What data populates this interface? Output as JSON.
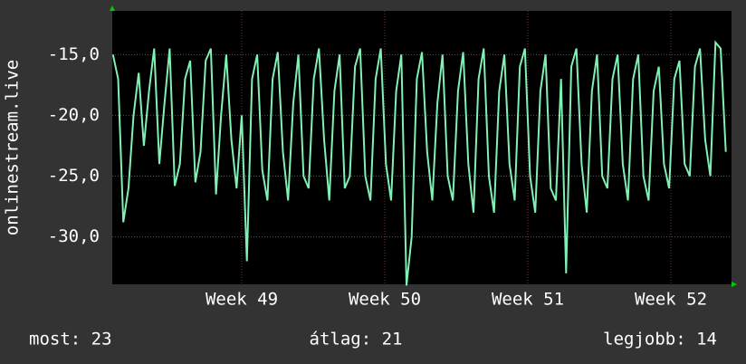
{
  "chart_data": {
    "type": "line",
    "y_label": "onlinestream.live",
    "x": [
      48.1,
      48.136,
      48.172,
      48.208,
      48.244,
      48.28,
      48.316,
      48.352,
      48.388,
      48.424,
      48.46,
      48.496,
      48.532,
      48.568,
      48.604,
      48.64,
      48.676,
      48.712,
      48.748,
      48.784,
      48.82,
      48.856,
      48.892,
      48.928,
      48.964,
      49.0,
      49.036,
      49.072,
      49.108,
      49.144,
      49.18,
      49.216,
      49.252,
      49.288,
      49.324,
      49.36,
      49.396,
      49.432,
      49.468,
      49.504,
      49.54,
      49.576,
      49.612,
      49.648,
      49.684,
      49.72,
      49.756,
      49.792,
      49.828,
      49.864,
      49.9,
      49.936,
      49.972,
      50.008,
      50.044,
      50.08,
      50.116,
      50.152,
      50.188,
      50.224,
      50.26,
      50.296,
      50.332,
      50.368,
      50.404,
      50.44,
      50.476,
      50.512,
      50.548,
      50.584,
      50.62,
      50.656,
      50.692,
      50.728,
      50.764,
      50.8,
      50.836,
      50.872,
      50.908,
      50.944,
      50.98,
      51.016,
      51.052,
      51.088,
      51.124,
      51.16,
      51.196,
      51.232,
      51.268,
      51.304,
      51.34,
      51.376,
      51.412,
      51.448,
      51.484,
      51.52,
      51.556,
      51.592,
      51.628,
      51.664,
      51.7,
      51.736,
      51.772,
      51.808,
      51.844,
      51.88,
      51.916,
      51.952,
      51.988,
      52.024,
      52.06,
      52.096,
      52.132,
      52.168,
      52.204,
      52.24,
      52.276,
      52.312,
      52.348,
      52.384
    ],
    "series": [
      {
        "color": "#80f0b4",
        "values": [
          -15,
          -17,
          -28.8,
          -26,
          -20,
          -16.5,
          -22.5,
          -18,
          -14.5,
          -24,
          -19,
          -14.5,
          -25.8,
          -24,
          -17,
          -15.5,
          -25.5,
          -23,
          -15.5,
          -14.5,
          -26.5,
          -20,
          -15,
          -22,
          -26,
          -20,
          -32,
          -17,
          -15,
          -24.5,
          -27,
          -17,
          -14.8,
          -23,
          -27,
          -19,
          -15,
          -25,
          -26,
          -17,
          -14.5,
          -22,
          -27,
          -18,
          -15,
          -26,
          -25,
          -16,
          -14.5,
          -25,
          -27,
          -17,
          -14.5,
          -24,
          -27,
          -18,
          -15,
          -34,
          -30,
          -17,
          -14.8,
          -23,
          -27,
          -19,
          -15,
          -25,
          -27,
          -18,
          -14.8,
          -24,
          -28,
          -17,
          -14.5,
          -25,
          -28,
          -18,
          -15,
          -24,
          -27,
          -16,
          -14.5,
          -25,
          -28,
          -18,
          -15,
          -26,
          -27,
          -17,
          -33,
          -16,
          -14.5,
          -24,
          -28,
          -18,
          -15,
          -25,
          -26,
          -17,
          -15,
          -24,
          -27,
          -17,
          -15,
          -25,
          -27,
          -18,
          -16,
          -24,
          -26,
          -17,
          -15.5,
          -24,
          -25,
          -16,
          -14.5,
          -22,
          -25,
          -14,
          -14.5,
          -23
        ]
      }
    ],
    "xlim": [
      48.095,
      52.424
    ],
    "xticks": [
      {
        "value": 49,
        "label": "Week 49"
      },
      {
        "value": 50,
        "label": "Week 50"
      },
      {
        "value": 51,
        "label": "Week 51"
      },
      {
        "value": 52,
        "label": "Week 52"
      }
    ],
    "ylim": [
      -33.9,
      -11.4
    ],
    "yticks": [
      {
        "value": -30,
        "label": "-30,0"
      },
      {
        "value": -25,
        "label": "-25,0"
      },
      {
        "value": -20,
        "label": "-20,0"
      },
      {
        "value": -15,
        "label": "-15,0"
      }
    ],
    "grid": true,
    "annotations": [
      "most: 23",
      "átlag: 21",
      "legjobb: 14"
    ]
  }
}
